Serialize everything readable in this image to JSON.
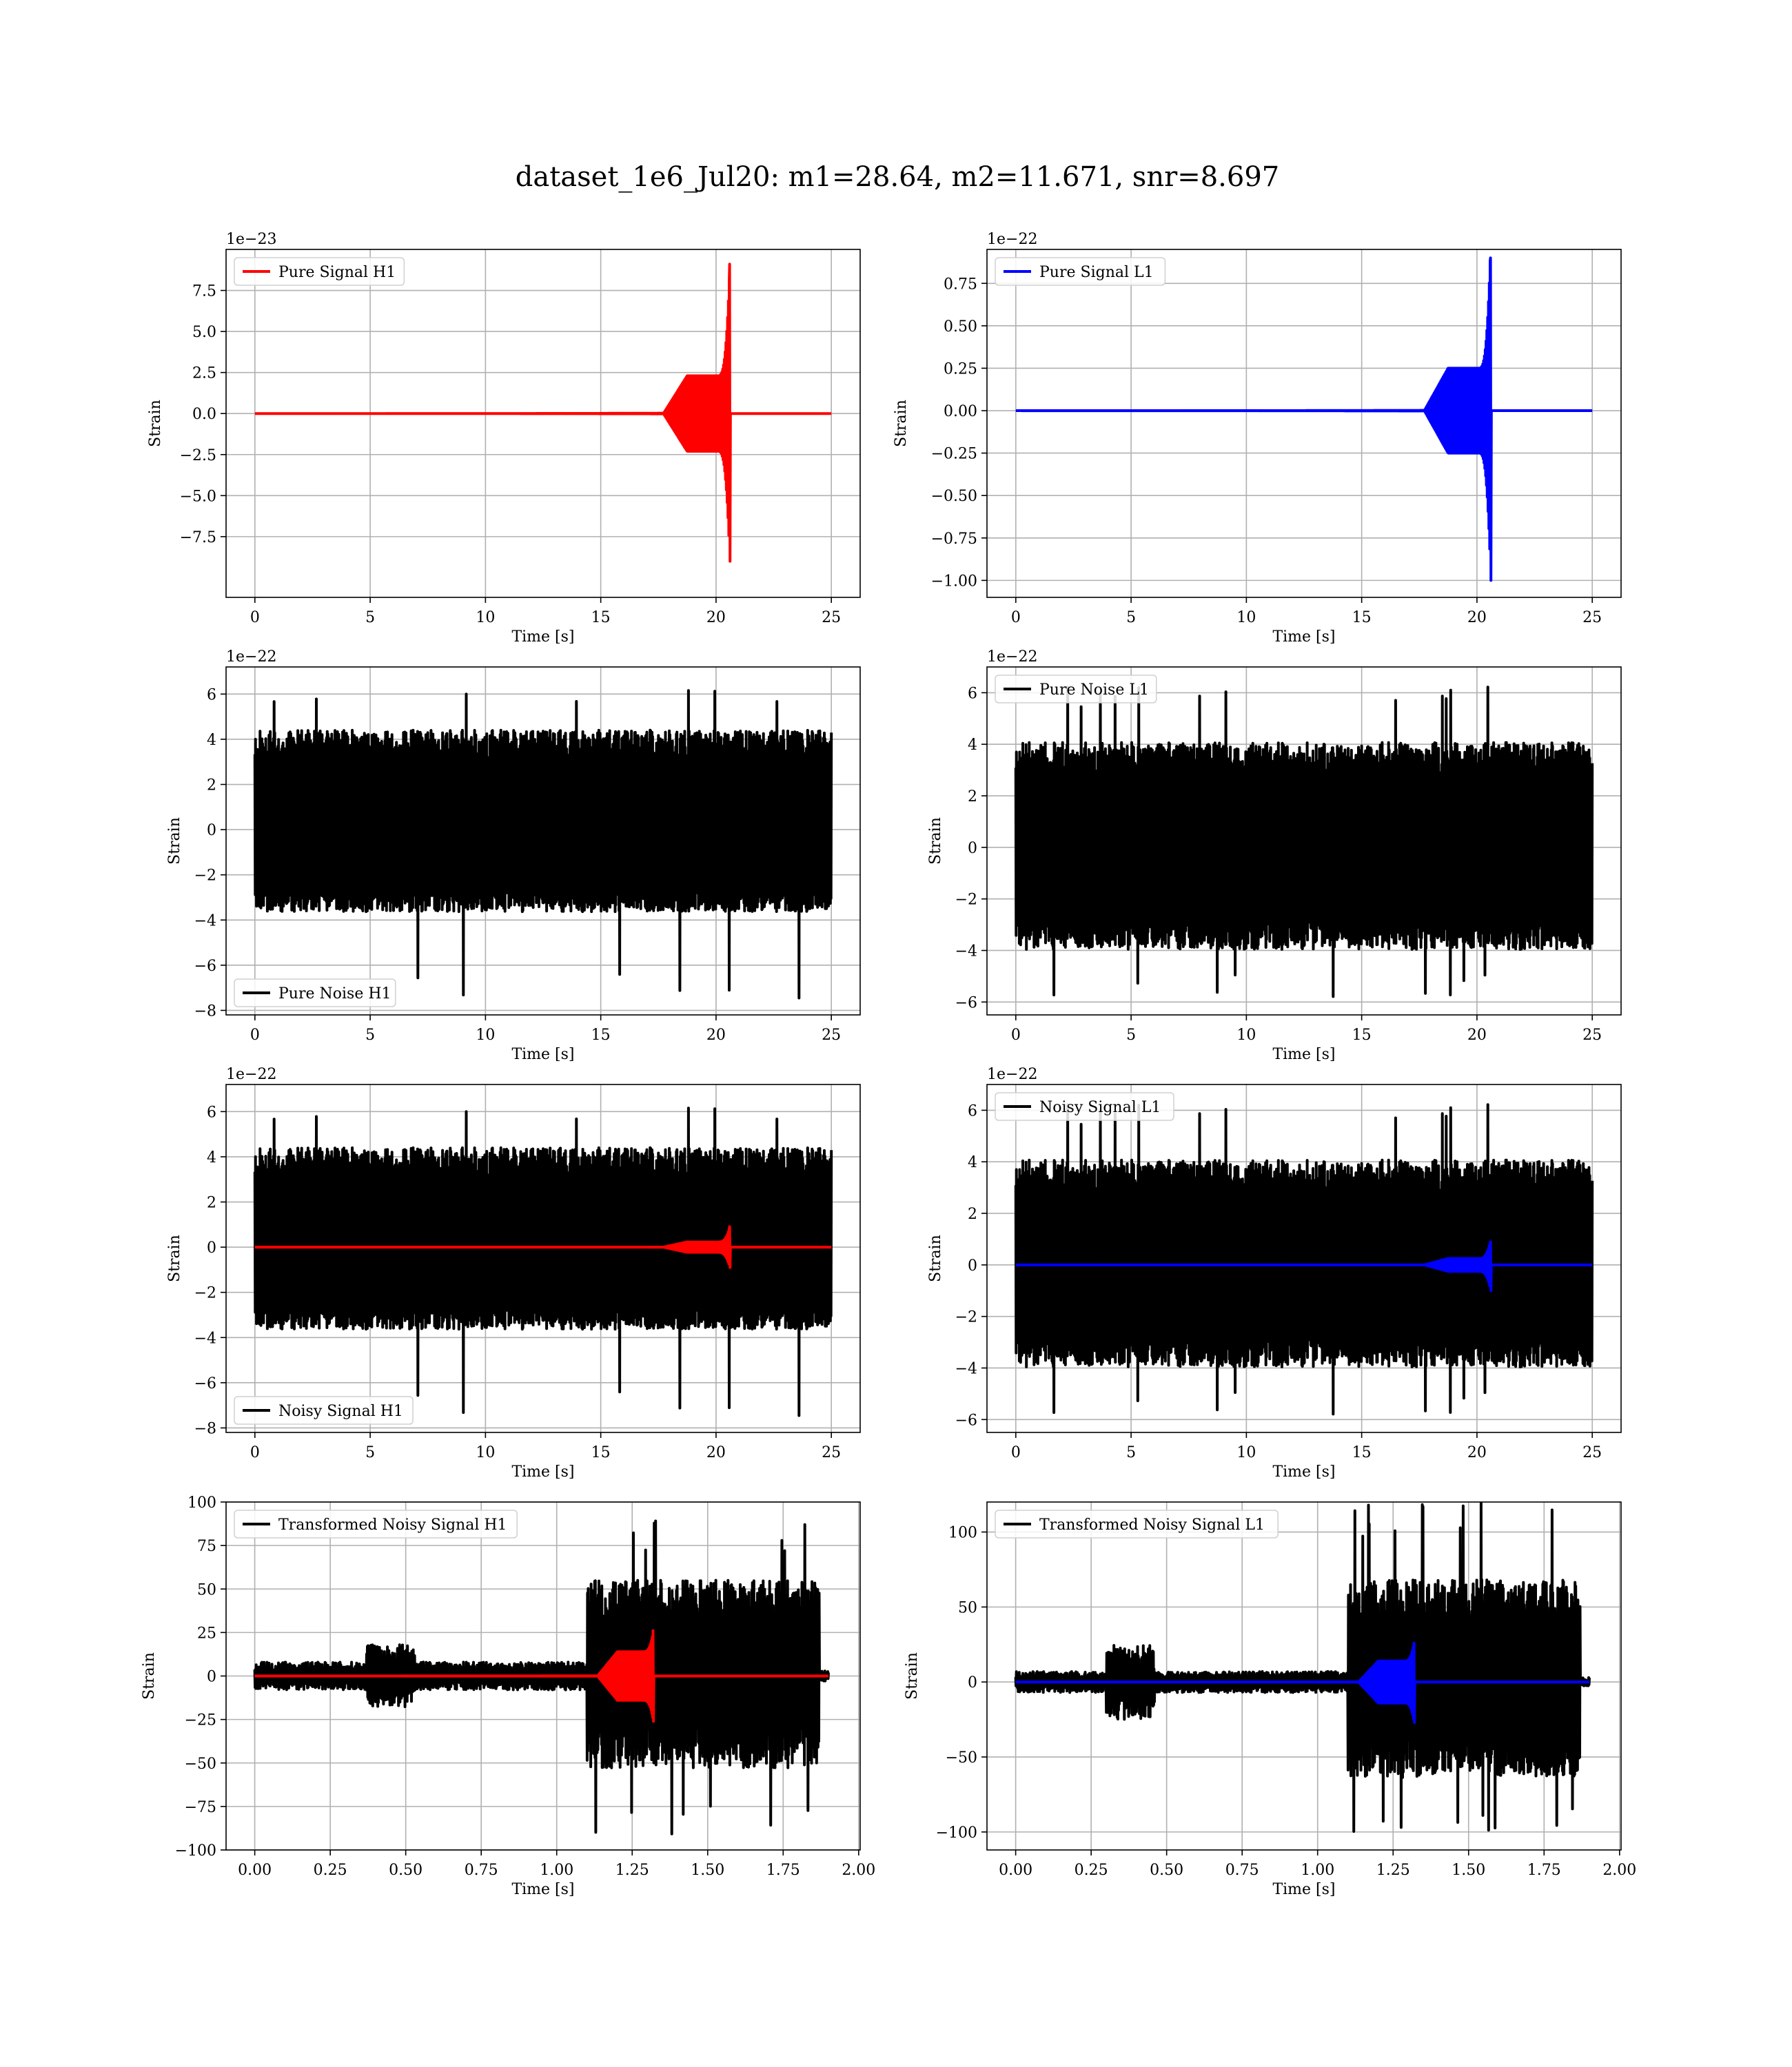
{
  "figure_title": "dataset_1e6_Jul20: m1=28.64, m2=11.671, snr=8.697",
  "colors": {
    "h1_signal": "#ff0000",
    "l1_signal": "#0000ff",
    "noise": "#000000",
    "grid": "#b0b0b0"
  },
  "chart_data": [
    {
      "id": "p1",
      "type": "line",
      "panel": "row1-left",
      "xlabel": "Time [s]",
      "ylabel": "Strain",
      "offset_text": "1e−23",
      "xlim": [
        -1.25,
        26.25
      ],
      "ylim": [
        -11.2,
        10.0
      ],
      "xticks": [
        0,
        5,
        10,
        15,
        20,
        25
      ],
      "yticks": [
        {
          "v": -7.5,
          "t": "−7.5"
        },
        {
          "v": -5.0,
          "t": "−5.0"
        },
        {
          "v": -2.5,
          "t": "−2.5"
        },
        {
          "v": 0.0,
          "t": "0.0"
        },
        {
          "v": 2.5,
          "t": "2.5"
        },
        {
          "v": 5.0,
          "t": "5.0"
        },
        {
          "v": 7.5,
          "t": "7.5"
        }
      ],
      "grid": true,
      "legend_loc": "upper left",
      "series": [
        {
          "name": "Pure Signal H1",
          "color": "#ff0000",
          "kind": "chirp",
          "x_range": [
            0,
            25
          ],
          "t_merger": 20.6,
          "peak_pos": 9.1,
          "peak_neg": -9.0,
          "env_start": 0.05,
          "pre_plateau_amp": 2.3
        }
      ]
    },
    {
      "id": "p2",
      "type": "line",
      "panel": "row1-right",
      "xlabel": "Time [s]",
      "ylabel": "Strain",
      "offset_text": "1e−22",
      "xlim": [
        -1.25,
        26.25
      ],
      "ylim": [
        -1.1,
        0.95
      ],
      "xticks": [
        0,
        5,
        10,
        15,
        20,
        25
      ],
      "yticks": [
        {
          "v": -1.0,
          "t": "−1.00"
        },
        {
          "v": -0.75,
          "t": "−0.75"
        },
        {
          "v": -0.5,
          "t": "−0.50"
        },
        {
          "v": -0.25,
          "t": "−0.25"
        },
        {
          "v": 0.0,
          "t": "0.00"
        },
        {
          "v": 0.25,
          "t": "0.25"
        },
        {
          "v": 0.5,
          "t": "0.50"
        },
        {
          "v": 0.75,
          "t": "0.75"
        }
      ],
      "grid": true,
      "legend_loc": "upper left",
      "series": [
        {
          "name": "Pure Signal L1",
          "color": "#0000ff",
          "kind": "chirp",
          "x_range": [
            0,
            25
          ],
          "t_merger": 20.6,
          "peak_pos": 0.9,
          "peak_neg": -1.0,
          "env_start": 0.005,
          "pre_plateau_amp": 0.25
        }
      ]
    },
    {
      "id": "p3",
      "type": "line",
      "panel": "row2-left",
      "xlabel": "Time [s]",
      "ylabel": "Strain",
      "offset_text": "1e−22",
      "xlim": [
        -1.25,
        26.25
      ],
      "ylim": [
        -8.2,
        7.2
      ],
      "xticks": [
        0,
        5,
        10,
        15,
        20,
        25
      ],
      "yticks": [
        {
          "v": -8,
          "t": "−8"
        },
        {
          "v": -6,
          "t": "−6"
        },
        {
          "v": -4,
          "t": "−4"
        },
        {
          "v": -2,
          "t": "−2"
        },
        {
          "v": 0,
          "t": "0"
        },
        {
          "v": 2,
          "t": "2"
        },
        {
          "v": 4,
          "t": "4"
        },
        {
          "v": 6,
          "t": "6"
        }
      ],
      "grid": true,
      "legend_loc": "lower left",
      "series": [
        {
          "name": "Pure Noise H1",
          "color": "#000000",
          "kind": "noise",
          "x_range": [
            0,
            25
          ],
          "band": [
            -3.3,
            4.0
          ],
          "max": 6.6,
          "min": -7.5,
          "seed": 11
        }
      ]
    },
    {
      "id": "p4",
      "type": "line",
      "panel": "row2-right",
      "xlabel": "Time [s]",
      "ylabel": "Strain",
      "offset_text": "1e−22",
      "xlim": [
        -1.25,
        26.25
      ],
      "ylim": [
        -6.5,
        7.0
      ],
      "xticks": [
        0,
        5,
        10,
        15,
        20,
        25
      ],
      "yticks": [
        {
          "v": -6,
          "t": "−6"
        },
        {
          "v": -4,
          "t": "−4"
        },
        {
          "v": -2,
          "t": "−2"
        },
        {
          "v": 0,
          "t": "0"
        },
        {
          "v": 2,
          "t": "2"
        },
        {
          "v": 4,
          "t": "4"
        },
        {
          "v": 6,
          "t": "6"
        }
      ],
      "grid": true,
      "legend_loc": "upper left",
      "series": [
        {
          "name": "Pure Noise L1",
          "color": "#000000",
          "kind": "noise",
          "x_range": [
            0,
            25
          ],
          "band": [
            -3.6,
            3.7
          ],
          "max": 6.3,
          "min": -5.8,
          "seed": 23
        }
      ]
    },
    {
      "id": "p5",
      "type": "line",
      "panel": "row3-left",
      "xlabel": "Time [s]",
      "ylabel": "Strain",
      "offset_text": "1e−22",
      "xlim": [
        -1.25,
        26.25
      ],
      "ylim": [
        -8.2,
        7.2
      ],
      "xticks": [
        0,
        5,
        10,
        15,
        20,
        25
      ],
      "yticks": [
        {
          "v": -8,
          "t": "−8"
        },
        {
          "v": -6,
          "t": "−6"
        },
        {
          "v": -4,
          "t": "−4"
        },
        {
          "v": -2,
          "t": "−2"
        },
        {
          "v": 0,
          "t": "0"
        },
        {
          "v": 2,
          "t": "2"
        },
        {
          "v": 4,
          "t": "4"
        },
        {
          "v": 6,
          "t": "6"
        }
      ],
      "grid": true,
      "legend_loc": "lower left",
      "series": [
        {
          "name": "Noisy Signal H1",
          "color": "#000000",
          "kind": "noise",
          "x_range": [
            0,
            25
          ],
          "band": [
            -3.3,
            4.0
          ],
          "max": 6.6,
          "min": -7.5,
          "seed": 11
        },
        {
          "name": "",
          "color": "#ff0000",
          "kind": "chirp",
          "x_range": [
            0,
            25
          ],
          "t_merger": 20.6,
          "peak_pos": 0.91,
          "peak_neg": -0.9,
          "env_start": 0.005,
          "pre_plateau_amp": 0.23
        }
      ]
    },
    {
      "id": "p6",
      "type": "line",
      "panel": "row3-right",
      "xlabel": "Time [s]",
      "ylabel": "Strain",
      "offset_text": "1e−22",
      "xlim": [
        -1.25,
        26.25
      ],
      "ylim": [
        -6.5,
        7.0
      ],
      "xticks": [
        0,
        5,
        10,
        15,
        20,
        25
      ],
      "yticks": [
        {
          "v": -6,
          "t": "−6"
        },
        {
          "v": -4,
          "t": "−4"
        },
        {
          "v": -2,
          "t": "−2"
        },
        {
          "v": 0,
          "t": "0"
        },
        {
          "v": 2,
          "t": "2"
        },
        {
          "v": 4,
          "t": "4"
        },
        {
          "v": 6,
          "t": "6"
        }
      ],
      "grid": true,
      "legend_loc": "upper left",
      "series": [
        {
          "name": "Noisy Signal L1",
          "color": "#000000",
          "kind": "noise",
          "x_range": [
            0,
            25
          ],
          "band": [
            -3.6,
            3.7
          ],
          "max": 6.3,
          "min": -5.8,
          "seed": 23
        },
        {
          "name": "",
          "color": "#0000ff",
          "kind": "chirp",
          "x_range": [
            0,
            25
          ],
          "t_merger": 20.6,
          "peak_pos": 0.9,
          "peak_neg": -1.0,
          "env_start": 0.005,
          "pre_plateau_amp": 0.25
        }
      ]
    },
    {
      "id": "p7",
      "type": "line",
      "panel": "row4-left",
      "xlabel": "Time [s]",
      "ylabel": "Strain",
      "offset_text": "",
      "xlim": [
        -0.095,
        2.005
      ],
      "ylim": [
        -100,
        100
      ],
      "xticks": [
        0.0,
        0.25,
        0.5,
        0.75,
        1.0,
        1.25,
        1.5,
        1.75,
        2.0
      ],
      "xtick_labels": [
        "0.00",
        "0.25",
        "0.50",
        "0.75",
        "1.00",
        "1.25",
        "1.50",
        "1.75",
        "2.00"
      ],
      "yticks": [
        {
          "v": -100,
          "t": "−100"
        },
        {
          "v": -75,
          "t": "−75"
        },
        {
          "v": -50,
          "t": "−50"
        },
        {
          "v": -25,
          "t": "−25"
        },
        {
          "v": 0,
          "t": "0"
        },
        {
          "v": 25,
          "t": "25"
        },
        {
          "v": 50,
          "t": "50"
        },
        {
          "v": 75,
          "t": "75"
        },
        {
          "v": 100,
          "t": "100"
        }
      ],
      "grid": true,
      "legend_loc": "upper left",
      "series": [
        {
          "name": "Transformed Noisy Signal H1",
          "color": "#000000",
          "kind": "whitened",
          "x_range": [
            0,
            1.9
          ],
          "seed": 5,
          "base_amp": 8,
          "t_burst": 1.1,
          "burst_band": [
            -48,
            50
          ],
          "t_end": 1.87,
          "max": 90,
          "min": -92,
          "bump_at": 0.45,
          "bump_amp": 18
        },
        {
          "name": "",
          "color": "#ff0000",
          "kind": "chirp",
          "x_range": [
            0,
            1.9
          ],
          "t_merger": 1.32,
          "peak_pos": 26,
          "peak_neg": -26,
          "env_start": 0.3,
          "pre_plateau_amp": 14,
          "cycles": 60
        }
      ]
    },
    {
      "id": "p8",
      "type": "line",
      "panel": "row4-right",
      "xlabel": "Time [s]",
      "ylabel": "Strain",
      "offset_text": "",
      "xlim": [
        -0.095,
        2.005
      ],
      "ylim": [
        -112,
        120
      ],
      "xticks": [
        0.0,
        0.25,
        0.5,
        0.75,
        1.0,
        1.25,
        1.5,
        1.75,
        2.0
      ],
      "xtick_labels": [
        "0.00",
        "0.25",
        "0.50",
        "0.75",
        "1.00",
        "1.25",
        "1.50",
        "1.75",
        "2.00"
      ],
      "yticks": [
        {
          "v": -100,
          "t": "−100"
        },
        {
          "v": -50,
          "t": "−50"
        },
        {
          "v": 0,
          "t": "0"
        },
        {
          "v": 50,
          "t": "50"
        },
        {
          "v": 100,
          "t": "100"
        }
      ],
      "grid": true,
      "legend_loc": "upper left",
      "series": [
        {
          "name": "Transformed Noisy Signal L1",
          "color": "#000000",
          "kind": "whitened",
          "x_range": [
            0,
            1.9
          ],
          "seed": 9,
          "base_amp": 7,
          "t_burst": 1.1,
          "burst_band": [
            -58,
            62
          ],
          "t_end": 1.87,
          "max": 120,
          "min": -100,
          "bump_at": 0.38,
          "bump_amp": 25
        },
        {
          "name": "",
          "color": "#0000ff",
          "kind": "chirp",
          "x_range": [
            0,
            1.9
          ],
          "t_merger": 1.32,
          "peak_pos": 26,
          "peak_neg": -27,
          "env_start": 0.3,
          "pre_plateau_amp": 14,
          "cycles": 60
        }
      ]
    }
  ]
}
